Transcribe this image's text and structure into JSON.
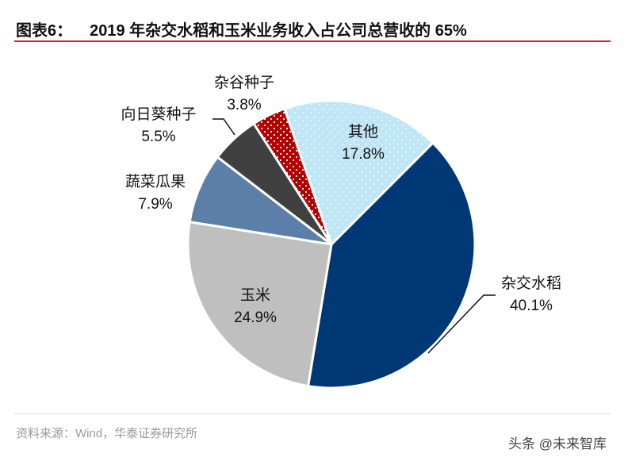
{
  "title": {
    "prefix": "图表6：",
    "text": "2019 年杂交水稻和玉米业务收入占公司总营收的 65%"
  },
  "chart_data": {
    "type": "pie",
    "title": "2019 年杂交水稻和玉米业务收入占公司总营收的 65%",
    "start_angle_deg": 45,
    "direction": "clockwise",
    "slices": [
      {
        "label": "杂交水稻",
        "value": 40.1,
        "display": "40.1%",
        "color": "#003876",
        "pattern": "solid"
      },
      {
        "label": "玉米",
        "value": 24.9,
        "display": "24.9%",
        "color": "#bfbfbf",
        "pattern": "solid"
      },
      {
        "label": "蔬菜瓜果",
        "value": 7.9,
        "display": "7.9%",
        "color": "#5b7fa8",
        "pattern": "solid"
      },
      {
        "label": "向日葵种子",
        "value": 5.5,
        "display": "5.5%",
        "color": "#404040",
        "pattern": "solid"
      },
      {
        "label": "杂谷种子",
        "value": 3.8,
        "display": "3.8%",
        "color": "#b00000",
        "pattern": "dots"
      },
      {
        "label": "其他",
        "value": 17.8,
        "display": "17.8%",
        "color": "#bfe6f7",
        "pattern": "dots"
      }
    ]
  },
  "source": "资料来源：Wind，华泰证券研究所",
  "watermark": "头条 @未来智库"
}
